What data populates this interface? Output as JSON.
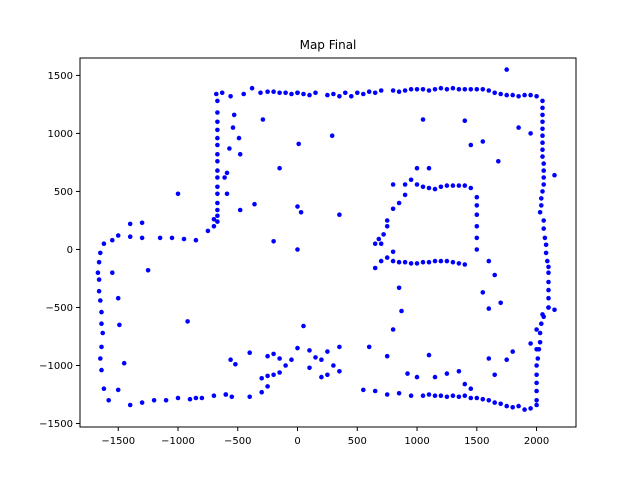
{
  "chart_data": {
    "type": "scatter",
    "title": "Map Final",
    "xlabel": "",
    "ylabel": "",
    "xlim": [
      -1820,
      2330
    ],
    "ylim": [
      -1530,
      1650
    ],
    "xticks": [
      -1500,
      -1000,
      -500,
      0,
      500,
      1000,
      1500,
      2000
    ],
    "yticks": [
      -1500,
      -1000,
      -500,
      0,
      500,
      1000,
      1500
    ],
    "xtick_labels": [
      "−1500",
      "−1000",
      "−500",
      "0",
      "500",
      "1000",
      "1500",
      "2000"
    ],
    "ytick_labels": [
      "−1500",
      "−1000",
      "−500",
      "0",
      "500",
      "1000",
      "1500"
    ],
    "grid": false,
    "marker_color": "#0000ff",
    "points": [
      [
        1750,
        1550
      ],
      [
        -680,
        1340
      ],
      [
        -630,
        1350
      ],
      [
        -560,
        1320
      ],
      [
        -450,
        1340
      ],
      [
        -380,
        1390
      ],
      [
        -310,
        1350
      ],
      [
        -250,
        1360
      ],
      [
        -200,
        1360
      ],
      [
        -150,
        1350
      ],
      [
        -100,
        1350
      ],
      [
        -50,
        1340
      ],
      [
        0,
        1350
      ],
      [
        50,
        1340
      ],
      [
        100,
        1330
      ],
      [
        150,
        1350
      ],
      [
        250,
        1330
      ],
      [
        300,
        1340
      ],
      [
        350,
        1320
      ],
      [
        400,
        1350
      ],
      [
        450,
        1320
      ],
      [
        500,
        1350
      ],
      [
        550,
        1340
      ],
      [
        600,
        1360
      ],
      [
        650,
        1350
      ],
      [
        700,
        1370
      ],
      [
        800,
        1370
      ],
      [
        850,
        1360
      ],
      [
        900,
        1370
      ],
      [
        950,
        1380
      ],
      [
        1000,
        1380
      ],
      [
        1050,
        1380
      ],
      [
        1100,
        1370
      ],
      [
        1150,
        1380
      ],
      [
        1200,
        1390
      ],
      [
        1250,
        1380
      ],
      [
        1300,
        1390
      ],
      [
        1350,
        1380
      ],
      [
        1400,
        1380
      ],
      [
        1450,
        1380
      ],
      [
        1500,
        1380
      ],
      [
        1550,
        1380
      ],
      [
        1600,
        1370
      ],
      [
        1650,
        1350
      ],
      [
        1700,
        1340
      ],
      [
        1750,
        1330
      ],
      [
        1800,
        1330
      ],
      [
        1850,
        1320
      ],
      [
        1900,
        1330
      ],
      [
        1950,
        1330
      ],
      [
        2000,
        1320
      ],
      [
        -670,
        1280
      ],
      [
        -670,
        1180
      ],
      [
        -670,
        1100
      ],
      [
        -670,
        1030
      ],
      [
        -670,
        960
      ],
      [
        -670,
        900
      ],
      [
        -670,
        820
      ],
      [
        -670,
        760
      ],
      [
        -670,
        680
      ],
      [
        -670,
        620
      ],
      [
        -670,
        540
      ],
      [
        -670,
        480
      ],
      [
        -670,
        400
      ],
      [
        -670,
        340
      ],
      [
        -670,
        290
      ],
      [
        -670,
        240
      ],
      [
        -530,
        1160
      ],
      [
        -540,
        1050
      ],
      [
        -490,
        960
      ],
      [
        -570,
        870
      ],
      [
        -480,
        820
      ],
      [
        -590,
        660
      ],
      [
        -610,
        620
      ],
      [
        -590,
        480
      ],
      [
        -480,
        340
      ],
      [
        -360,
        390
      ],
      [
        -290,
        1120
      ],
      [
        -150,
        700
      ],
      [
        0,
        1350
      ],
      [
        10,
        910
      ],
      [
        0,
        370
      ],
      [
        30,
        320
      ],
      [
        -200,
        70
      ],
      [
        0,
        0
      ],
      [
        290,
        980
      ],
      [
        350,
        300
      ],
      [
        1050,
        1120
      ],
      [
        1400,
        1110
      ],
      [
        1450,
        900
      ],
      [
        1550,
        930
      ],
      [
        1680,
        760
      ],
      [
        1850,
        1050
      ],
      [
        1950,
        1000
      ],
      [
        -700,
        260
      ],
      [
        -700,
        200
      ],
      [
        -750,
        160
      ],
      [
        -850,
        80
      ],
      [
        -950,
        90
      ],
      [
        -1050,
        100
      ],
      [
        -1150,
        100
      ],
      [
        -1300,
        100
      ],
      [
        -1400,
        110
      ],
      [
        -1500,
        120
      ],
      [
        -1550,
        80
      ],
      [
        -1620,
        50
      ],
      [
        -1650,
        -30
      ],
      [
        -1660,
        -110
      ],
      [
        -1670,
        -200
      ],
      [
        -1660,
        -260
      ],
      [
        -1660,
        -360
      ],
      [
        -1650,
        -440
      ],
      [
        -1640,
        -540
      ],
      [
        -1640,
        -640
      ],
      [
        -1630,
        -720
      ],
      [
        -1640,
        -840
      ],
      [
        -1650,
        -940
      ],
      [
        -1640,
        -1040
      ],
      [
        -1620,
        -1200
      ],
      [
        -1580,
        -1300
      ],
      [
        -1550,
        -200
      ],
      [
        -1500,
        -420
      ],
      [
        -1490,
        -650
      ],
      [
        -1450,
        -980
      ],
      [
        -1500,
        -1210
      ],
      [
        -1400,
        -1340
      ],
      [
        -1300,
        -1320
      ],
      [
        -1200,
        -1300
      ],
      [
        -1100,
        -1300
      ],
      [
        -1000,
        -1280
      ],
      [
        -900,
        -1290
      ],
      [
        -850,
        -1280
      ],
      [
        -800,
        -1280
      ],
      [
        -700,
        -1260
      ],
      [
        -600,
        -1250
      ],
      [
        -550,
        -1270
      ],
      [
        -400,
        -1270
      ],
      [
        -300,
        -1230
      ],
      [
        -250,
        -1180
      ],
      [
        -300,
        -1110
      ],
      [
        -250,
        -1090
      ],
      [
        -200,
        -1080
      ],
      [
        -150,
        -1060
      ],
      [
        -100,
        -1000
      ],
      [
        -50,
        -950
      ],
      [
        -150,
        -940
      ],
      [
        -200,
        -900
      ],
      [
        -250,
        -920
      ],
      [
        -1300,
        230
      ],
      [
        -1400,
        220
      ],
      [
        -1250,
        -180
      ],
      [
        -1000,
        480
      ],
      [
        -920,
        -620
      ],
      [
        -400,
        -890
      ],
      [
        -520,
        -990
      ],
      [
        -560,
        -950
      ],
      [
        -600,
        -1250
      ],
      [
        550,
        -1210
      ],
      [
        650,
        -1220
      ],
      [
        750,
        -1250
      ],
      [
        850,
        -1240
      ],
      [
        950,
        -1260
      ],
      [
        1050,
        -1260
      ],
      [
        1100,
        -1250
      ],
      [
        1150,
        -1260
      ],
      [
        1200,
        -1260
      ],
      [
        1250,
        -1270
      ],
      [
        1300,
        -1260
      ],
      [
        1350,
        -1270
      ],
      [
        1400,
        -1260
      ],
      [
        1450,
        -1280
      ],
      [
        1500,
        -1280
      ],
      [
        1550,
        -1290
      ],
      [
        1600,
        -1300
      ],
      [
        1650,
        -1320
      ],
      [
        1700,
        -1330
      ],
      [
        1750,
        -1350
      ],
      [
        1800,
        -1360
      ],
      [
        1850,
        -1350
      ],
      [
        1900,
        -1380
      ],
      [
        1950,
        -1370
      ],
      [
        2000,
        -1340
      ],
      [
        50,
        -660
      ],
      [
        0,
        -850
      ],
      [
        100,
        -870
      ],
      [
        150,
        -930
      ],
      [
        200,
        -950
      ],
      [
        250,
        -880
      ],
      [
        300,
        -1000
      ],
      [
        350,
        -1050
      ],
      [
        100,
        -1020
      ],
      [
        200,
        -1100
      ],
      [
        250,
        -1080
      ],
      [
        350,
        -840
      ],
      [
        600,
        -840
      ],
      [
        800,
        -690
      ],
      [
        750,
        -920
      ],
      [
        870,
        -530
      ],
      [
        850,
        -330
      ],
      [
        920,
        -1070
      ],
      [
        1000,
        -1100
      ],
      [
        1100,
        -910
      ],
      [
        1150,
        -1100
      ],
      [
        1250,
        -1070
      ],
      [
        1350,
        -1050
      ],
      [
        1400,
        -1160
      ],
      [
        1450,
        -1200
      ],
      [
        1550,
        -370
      ],
      [
        1600,
        -510
      ],
      [
        1600,
        -940
      ],
      [
        1650,
        -1080
      ],
      [
        1750,
        -950
      ],
      [
        1800,
        -880
      ],
      [
        1950,
        -810
      ],
      [
        2000,
        -690
      ],
      [
        2050,
        -560
      ],
      [
        2100,
        -500
      ],
      [
        2150,
        -520
      ],
      [
        2000,
        -860
      ],
      [
        2050,
        1280
      ],
      [
        2050,
        1220
      ],
      [
        2050,
        1160
      ],
      [
        2050,
        1100
      ],
      [
        2050,
        1040
      ],
      [
        2050,
        980
      ],
      [
        2050,
        920
      ],
      [
        2050,
        860
      ],
      [
        2050,
        800
      ],
      [
        2060,
        740
      ],
      [
        2060,
        680
      ],
      [
        2060,
        620
      ],
      [
        2060,
        560
      ],
      [
        2050,
        500
      ],
      [
        2040,
        440
      ],
      [
        2040,
        380
      ],
      [
        2030,
        320
      ],
      [
        2060,
        250
      ],
      [
        2060,
        180
      ],
      [
        2070,
        100
      ],
      [
        2080,
        40
      ],
      [
        2080,
        -30
      ],
      [
        2090,
        -100
      ],
      [
        2100,
        -150
      ],
      [
        2100,
        -200
      ],
      [
        2100,
        -280
      ],
      [
        2100,
        -350
      ],
      [
        2100,
        -420
      ],
      [
        2100,
        -500
      ],
      [
        2060,
        -580
      ],
      [
        2040,
        -640
      ],
      [
        2030,
        -720
      ],
      [
        2030,
        -800
      ],
      [
        2020,
        -860
      ],
      [
        2010,
        -940
      ],
      [
        2000,
        -1000
      ],
      [
        2000,
        -1080
      ],
      [
        2000,
        -1150
      ],
      [
        2000,
        -1220
      ],
      [
        2000,
        -1300
      ],
      [
        2150,
        640
      ],
      [
        1700,
        -460
      ],
      [
        1650,
        -220
      ],
      [
        1600,
        -100
      ],
      [
        800,
        560
      ],
      [
        900,
        560
      ],
      [
        1000,
        560
      ],
      [
        1050,
        540
      ],
      [
        1100,
        530
      ],
      [
        1150,
        520
      ],
      [
        1200,
        540
      ],
      [
        1250,
        550
      ],
      [
        1300,
        550
      ],
      [
        1350,
        550
      ],
      [
        1400,
        550
      ],
      [
        1450,
        530
      ],
      [
        1500,
        450
      ],
      [
        1500,
        380
      ],
      [
        1500,
        300
      ],
      [
        1500,
        200
      ],
      [
        1500,
        100
      ],
      [
        1500,
        0
      ],
      [
        1400,
        -130
      ],
      [
        1350,
        -120
      ],
      [
        1300,
        -110
      ],
      [
        1250,
        -100
      ],
      [
        1200,
        -100
      ],
      [
        1150,
        -100
      ],
      [
        1100,
        -110
      ],
      [
        1050,
        -110
      ],
      [
        1000,
        -120
      ],
      [
        950,
        -120
      ],
      [
        900,
        -110
      ],
      [
        850,
        -110
      ],
      [
        800,
        -100
      ],
      [
        750,
        -70
      ],
      [
        700,
        -100
      ],
      [
        650,
        -160
      ],
      [
        700,
        50
      ],
      [
        750,
        200
      ],
      [
        750,
        250
      ],
      [
        800,
        350
      ],
      [
        850,
        400
      ],
      [
        900,
        470
      ],
      [
        950,
        600
      ],
      [
        1000,
        700
      ],
      [
        1100,
        700
      ],
      [
        800,
        -20
      ],
      [
        720,
        130
      ],
      [
        650,
        50
      ],
      [
        680,
        90
      ]
    ]
  }
}
